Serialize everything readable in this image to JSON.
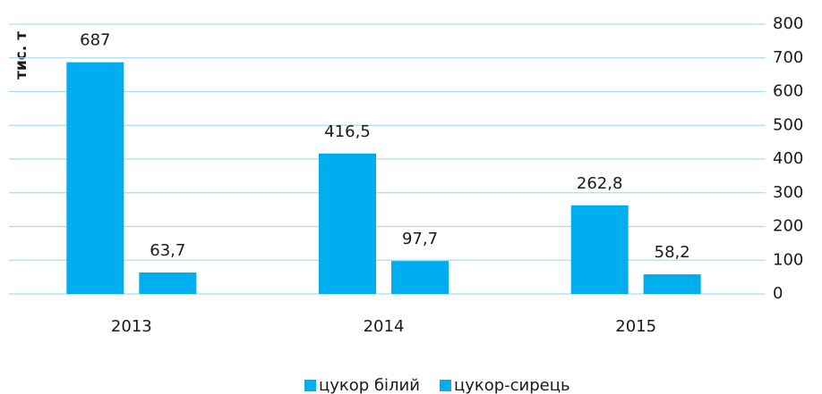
{
  "chart_data": {
    "type": "bar",
    "y_axis_label": "тис. т",
    "categories": [
      "2013",
      "2014",
      "2015"
    ],
    "series": [
      {
        "name": "цукор білий",
        "color": "#00aeef",
        "values": [
          687,
          416.5,
          262.8
        ],
        "value_labels": [
          "687",
          "416,5",
          "262,8"
        ]
      },
      {
        "name": "цукор-сирець",
        "color": "#00aeef",
        "values": [
          63.7,
          97.7,
          58.2
        ],
        "value_labels": [
          "63,7",
          "97,7",
          "58,2"
        ]
      }
    ],
    "ylim": [
      0,
      800
    ],
    "yticks": [
      0,
      100,
      200,
      300,
      400,
      500,
      600,
      700,
      800
    ],
    "y_axis_side": "right",
    "grid": true,
    "legend": "bottom"
  }
}
